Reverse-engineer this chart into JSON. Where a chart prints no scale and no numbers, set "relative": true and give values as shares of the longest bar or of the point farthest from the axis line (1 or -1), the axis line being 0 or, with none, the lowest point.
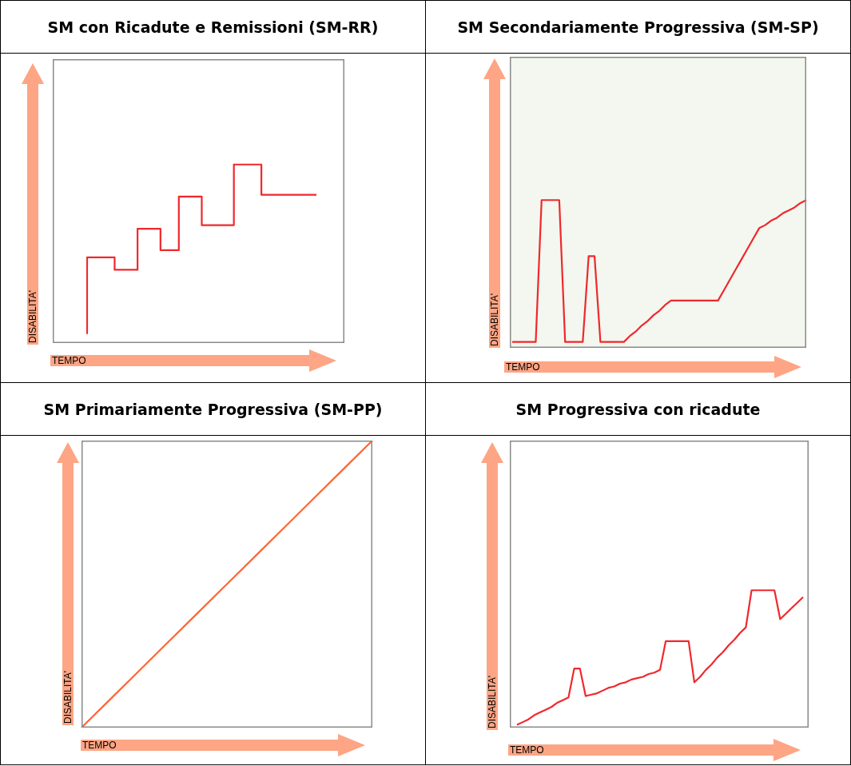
{
  "chart_data": [
    {
      "type": "step",
      "title": "SM con Ricadute e Remissioni (SM-RR)",
      "xlabel": "TEMPO",
      "ylabel": "DISABILITA'",
      "relative": true,
      "tick_labels": false,
      "color": "#f0282d",
      "categories": [
        null,
        null,
        null,
        null,
        null,
        null,
        null,
        null,
        null,
        null,
        null,
        null,
        null,
        null,
        null,
        null,
        null,
        null,
        null,
        null,
        null,
        null,
        null,
        null,
        null,
        null,
        null,
        null,
        null,
        null,
        null,
        null,
        null,
        null,
        null,
        null,
        null,
        null,
        null,
        null,
        null,
        null,
        null,
        null,
        null,
        null,
        null,
        null,
        null,
        null,
        null
      ],
      "values": [
        0.05,
        0.48,
        0.48,
        0.48,
        0.48,
        0.48,
        0.48,
        0.41,
        0.41,
        0.41,
        0.41,
        0.41,
        0.64,
        0.64,
        0.64,
        0.64,
        0.64,
        0.52,
        0.52,
        0.52,
        0.52,
        0.82,
        0.82,
        0.82,
        0.82,
        0.82,
        0.66,
        0.66,
        0.66,
        0.66,
        0.66,
        0.66,
        0.66,
        1,
        1,
        1,
        1,
        1,
        1,
        0.83,
        0.83,
        0.83,
        0.83,
        0.83,
        0.83,
        0.83,
        0.83,
        0.83,
        0.83,
        0.83,
        0.83
      ]
    },
    {
      "type": "line",
      "title": "SM Secondariamente Progressiva (SM-SP)",
      "xlabel": "TEMPO",
      "ylabel": "DISABILITA'",
      "relative": true,
      "tick_labels": false,
      "color": "#f0282d",
      "categories": [
        null,
        null,
        null,
        null,
        null,
        null,
        null,
        null,
        null,
        null,
        null,
        null,
        null,
        null,
        null,
        null,
        null,
        null,
        null,
        null,
        null,
        null,
        null,
        null,
        null,
        null,
        null,
        null,
        null,
        null,
        null,
        null,
        null,
        null,
        null,
        null,
        null,
        null,
        null,
        null,
        null,
        null,
        null,
        null,
        null,
        null,
        null,
        null,
        null,
        null,
        null
      ],
      "values": [
        0.04,
        0.04,
        0.04,
        0.04,
        0.04,
        1,
        1,
        1,
        1,
        0.04,
        0.04,
        0.04,
        0.04,
        0.62,
        0.62,
        0.04,
        0.04,
        0.04,
        0.04,
        0.04,
        0.08,
        0.11,
        0.15,
        0.18,
        0.22,
        0.25,
        0.29,
        0.32,
        0.32,
        0.32,
        0.32,
        0.32,
        0.32,
        0.32,
        0.32,
        0.32,
        0.39,
        0.46,
        0.53,
        0.6,
        0.67,
        0.74,
        0.81,
        0.83,
        0.86,
        0.88,
        0.91,
        0.93,
        0.95,
        0.98,
        1
      ]
    },
    {
      "type": "line",
      "title": "SM Primariamente Progressiva (SM-PP)",
      "xlabel": "TEMPO",
      "ylabel": "DISABILITA'",
      "relative": true,
      "tick_labels": false,
      "color": "#ff6633",
      "categories": [
        null,
        null,
        null,
        null,
        null,
        null,
        null,
        null,
        null,
        null,
        null
      ],
      "values": [
        0,
        0.1,
        0.2,
        0.3,
        0.4,
        0.5,
        0.6,
        0.7,
        0.8,
        0.9,
        1
      ]
    },
    {
      "type": "line",
      "title": "SM Progressiva con ricadute",
      "xlabel": "TEMPO",
      "ylabel": "DISABILITA'",
      "relative": true,
      "tick_labels": false,
      "color": "#f0282d",
      "categories": [
        null,
        null,
        null,
        null,
        null,
        null,
        null,
        null,
        null,
        null,
        null,
        null,
        null,
        null,
        null,
        null,
        null,
        null,
        null,
        null,
        null,
        null,
        null,
        null,
        null,
        null,
        null,
        null,
        null,
        null,
        null,
        null,
        null,
        null,
        null,
        null,
        null,
        null,
        null,
        null,
        null,
        null,
        null,
        null,
        null,
        null,
        null,
        null,
        null,
        null,
        null
      ],
      "values": [
        0.02,
        0.04,
        0.06,
        0.09,
        0.11,
        0.13,
        0.15,
        0.18,
        0.2,
        0.22,
        0.43,
        0.43,
        0.23,
        0.24,
        0.25,
        0.27,
        0.29,
        0.3,
        0.32,
        0.33,
        0.35,
        0.36,
        0.37,
        0.39,
        0.4,
        0.42,
        0.63,
        0.63,
        0.63,
        0.63,
        0.63,
        0.33,
        0.37,
        0.42,
        0.46,
        0.51,
        0.55,
        0.6,
        0.64,
        0.69,
        0.73,
        1,
        1,
        1,
        1,
        1,
        0.79,
        0.83,
        0.87,
        0.91,
        0.95
      ]
    }
  ]
}
